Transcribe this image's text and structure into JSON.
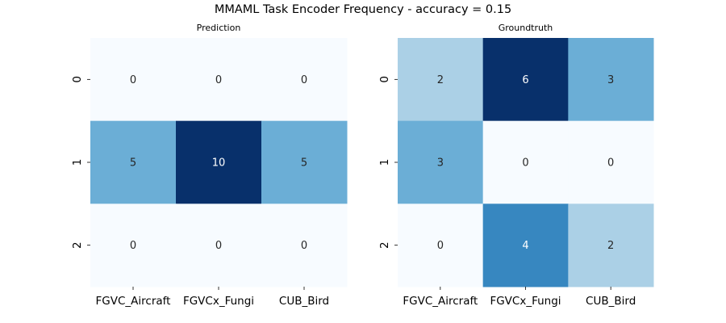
{
  "figure": {
    "title": "MMAML Task Encoder Frequency - accuracy = 0.15"
  },
  "colors": {
    "colormap": "Blues",
    "text_dark": "#262626",
    "text_light": "#ffffff",
    "min_color": "#f7fbff",
    "max_color": "#08306b"
  },
  "chart_data": [
    {
      "type": "heatmap",
      "title": "Prediction",
      "xticklabels": [
        "FGVC_Aircraft",
        "FGVCx_Fungi",
        "CUB_Bird"
      ],
      "yticklabels": [
        "0",
        "1",
        "2"
      ],
      "values": [
        [
          0,
          0,
          0
        ],
        [
          5,
          10,
          5
        ],
        [
          0,
          0,
          0
        ]
      ],
      "annotate": true,
      "colorbar": false
    },
    {
      "type": "heatmap",
      "title": "Groundtruth",
      "xticklabels": [
        "FGVC_Aircraft",
        "FGVCx_Fungi",
        "CUB_Bird"
      ],
      "yticklabels": [
        "0",
        "1",
        "2"
      ],
      "values": [
        [
          2,
          6,
          3
        ],
        [
          3,
          0,
          0
        ],
        [
          0,
          4,
          2
        ]
      ],
      "annotate": true,
      "colorbar": false
    }
  ]
}
